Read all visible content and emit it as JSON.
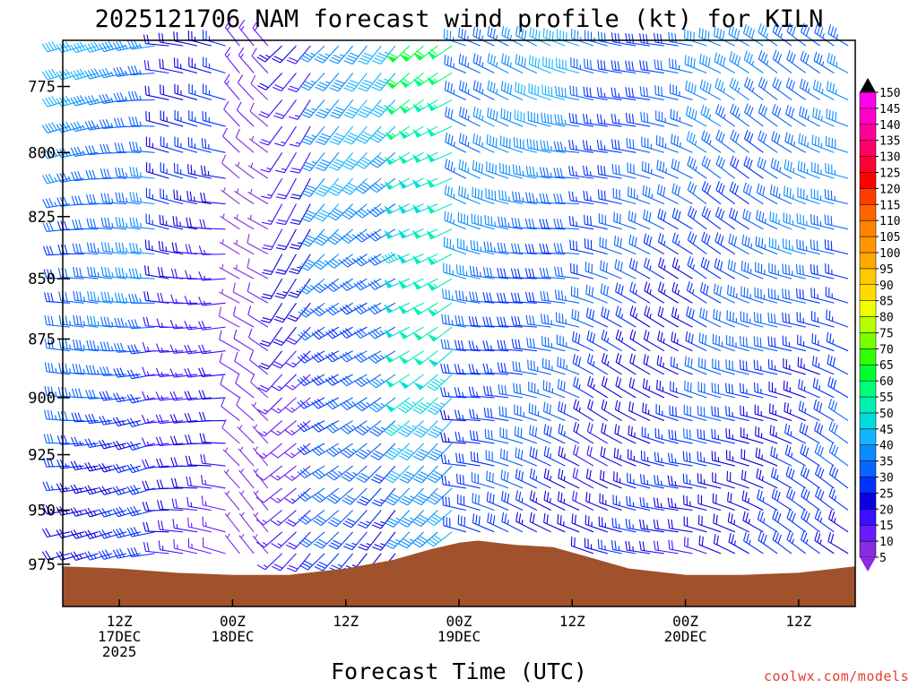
{
  "chart_data": {
    "type": "wind-barb",
    "title": "2025121706 NAM forecast wind profile (kt) for KILN",
    "xlabel": "Forecast Time (UTC)",
    "ylabel": "",
    "y_axis_ticks": [
      775,
      800,
      825,
      850,
      875,
      900,
      925,
      950,
      975
    ],
    "y_range_hPa": [
      758,
      995
    ],
    "x_range_hours": [
      0,
      84
    ],
    "x_ticks": [
      {
        "hour": 6,
        "lines": [
          "12Z",
          "17DEC",
          "2025"
        ]
      },
      {
        "hour": 18,
        "lines": [
          "00Z",
          "18DEC"
        ]
      },
      {
        "hour": 30,
        "lines": [
          "12Z",
          ""
        ]
      },
      {
        "hour": 42,
        "lines": [
          "00Z",
          "19DEC"
        ]
      },
      {
        "hour": 54,
        "lines": [
          "12Z",
          ""
        ]
      },
      {
        "hour": 66,
        "lines": [
          "00Z",
          "20DEC"
        ]
      },
      {
        "hour": 78,
        "lines": [
          "12Z",
          ""
        ]
      }
    ],
    "colorbar_units": "kt",
    "colorbar": [
      {
        "value": 5,
        "color": "#8a2be2"
      },
      {
        "value": 10,
        "color": "#6a1bff"
      },
      {
        "value": 15,
        "color": "#3a10ff"
      },
      {
        "value": 20,
        "color": "#0a00e0"
      },
      {
        "value": 25,
        "color": "#0032ff"
      },
      {
        "value": 30,
        "color": "#0a64ff"
      },
      {
        "value": 35,
        "color": "#0a8cff"
      },
      {
        "value": 40,
        "color": "#14b4ff"
      },
      {
        "value": 45,
        "color": "#00dcdc"
      },
      {
        "value": 50,
        "color": "#00f0b4"
      },
      {
        "value": 55,
        "color": "#00ff78"
      },
      {
        "value": 60,
        "color": "#00ff32"
      },
      {
        "value": 65,
        "color": "#32ff00"
      },
      {
        "value": 70,
        "color": "#78ff00"
      },
      {
        "value": 75,
        "color": "#b4ff00"
      },
      {
        "value": 80,
        "color": "#f0ff00"
      },
      {
        "value": 85,
        "color": "#ffdc00"
      },
      {
        "value": 90,
        "color": "#ffc800"
      },
      {
        "value": 95,
        "color": "#ffaa00"
      },
      {
        "value": 100,
        "color": "#ff9600"
      },
      {
        "value": 105,
        "color": "#ff8200"
      },
      {
        "value": 110,
        "color": "#ff6400"
      },
      {
        "value": 115,
        "color": "#ff3c00"
      },
      {
        "value": 120,
        "color": "#ff0000"
      },
      {
        "value": 125,
        "color": "#ff0032"
      },
      {
        "value": 130,
        "color": "#ff0064"
      },
      {
        "value": 135,
        "color": "#ff0096"
      },
      {
        "value": 140,
        "color": "#ff00c8"
      },
      {
        "value": 145,
        "color": "#ff00f0"
      },
      {
        "value": 150,
        "color": "#000000"
      }
    ],
    "terrain_color": "#a0522d",
    "terrain_surface_pressure": [
      {
        "hour": 0,
        "hPa": 976
      },
      {
        "hour": 6,
        "hPa": 977
      },
      {
        "hour": 12,
        "hPa": 979
      },
      {
        "hour": 18,
        "hPa": 980
      },
      {
        "hour": 24,
        "hPa": 980
      },
      {
        "hour": 30,
        "hPa": 977
      },
      {
        "hour": 35,
        "hPa": 973
      },
      {
        "hour": 39,
        "hPa": 968
      },
      {
        "hour": 42,
        "hPa": 965
      },
      {
        "hour": 44,
        "hPa": 964
      },
      {
        "hour": 48,
        "hPa": 966
      },
      {
        "hour": 52,
        "hPa": 967
      },
      {
        "hour": 56,
        "hPa": 972
      },
      {
        "hour": 60,
        "hPa": 977
      },
      {
        "hour": 64,
        "hPa": 979
      },
      {
        "hour": 66,
        "hPa": 980
      },
      {
        "hour": 72,
        "hPa": 980
      },
      {
        "hour": 78,
        "hPa": 979
      },
      {
        "hour": 84,
        "hPa": 976
      }
    ],
    "barb_levels_hPa": [
      760,
      770,
      780,
      790,
      800,
      810,
      820,
      830,
      840,
      850,
      860,
      870,
      880,
      890,
      900,
      910,
      920,
      930,
      940,
      950,
      960,
      970,
      980
    ],
    "barb_time_step_hours": 1.5,
    "wind_regimes": [
      {
        "hours": [
          0,
          11
        ],
        "direction_deg": 265,
        "speed_kt": 38
      },
      {
        "hours": [
          11,
          18
        ],
        "direction_deg": 275,
        "speed_kt": 24
      },
      {
        "hours": [
          18,
          23
        ],
        "direction_deg": 310,
        "speed_kt": 10
      },
      {
        "hours": [
          23,
          27
        ],
        "direction_deg": 220,
        "speed_kt": 22
      },
      {
        "hours": [
          27,
          36
        ],
        "direction_deg": 230,
        "speed_kt": 40
      },
      {
        "hours": [
          36,
          42
        ],
        "direction_deg": 235,
        "speed_kt": 58
      },
      {
        "hours": [
          42,
          55
        ],
        "direction_deg": 285,
        "speed_kt": 38
      },
      {
        "hours": [
          55,
          68
        ],
        "direction_deg": 290,
        "speed_kt": 32
      },
      {
        "hours": [
          68,
          84
        ],
        "direction_deg": 295,
        "speed_kt": 36
      }
    ]
  },
  "credit": "coolwx.com/models"
}
